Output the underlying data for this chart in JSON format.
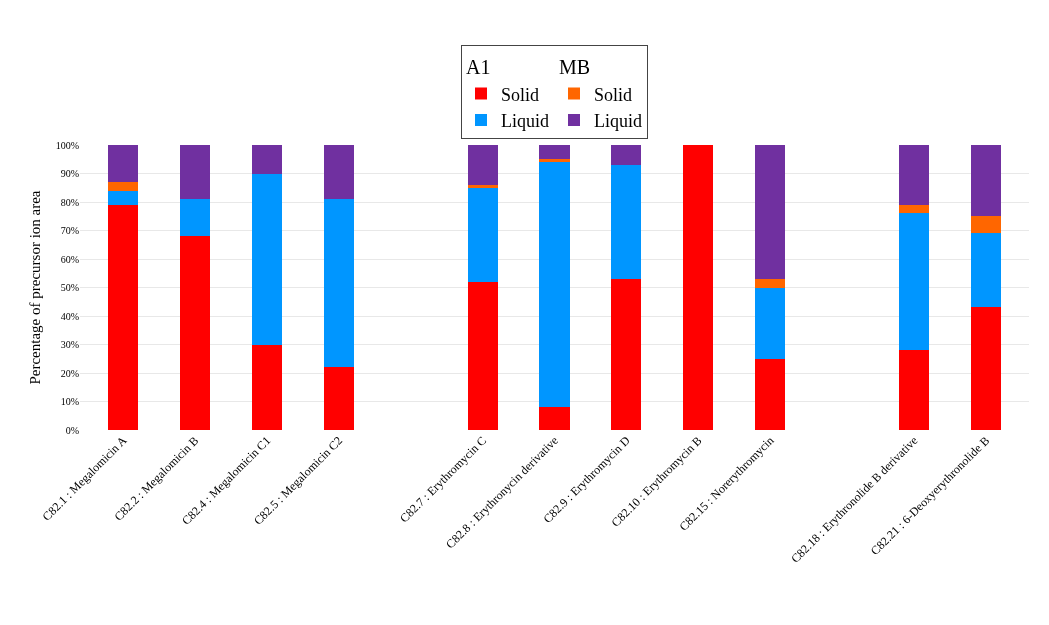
{
  "chart_data": {
    "type": "bar",
    "stacked": true,
    "ylabel": "Percentage of precursor ion area",
    "categories": [
      "C82.1 : Megalomicin A",
      "C82.2 : Megalomicin B",
      "C82.4 : Megalomicin C1",
      "C82.5 : Megalomicin C2",
      null,
      "C82.7 : Erythromycin C",
      "C82.8 : Erythronycin derivative",
      "C82.9 : Erythromycin D",
      "C82.10 : Erythromycin B",
      "C82.15 : Norerythromycin",
      null,
      "C82.18 : Erythronolide B derivative",
      "C82.21 : 6-Deoxyerythronolide B"
    ],
    "series": [
      {
        "name": "Solid",
        "color": "#ff0000",
        "values": [
          79,
          68,
          30,
          22,
          null,
          52,
          8,
          53,
          100,
          25,
          null,
          28,
          43
        ]
      },
      {
        "name": "Liquid",
        "color": "#0096ff",
        "values": [
          5,
          13,
          60,
          59,
          null,
          33,
          86,
          40,
          0,
          25,
          null,
          48,
          26
        ]
      },
      {
        "name": "Solid",
        "color": "#ff6600",
        "values": [
          3,
          0,
          0,
          0,
          null,
          1,
          1,
          0,
          0,
          3,
          null,
          3,
          6
        ]
      },
      {
        "name": "Liquid",
        "color": "#7030a0",
        "values": [
          13,
          19,
          10,
          19,
          null,
          14,
          5,
          7,
          0,
          47,
          null,
          21,
          25
        ]
      }
    ],
    "annotations": [
      "A1",
      "MB"
    ],
    "ylim": [
      0,
      100
    ],
    "yticks": [
      {
        "value": 0,
        "label": "0%"
      },
      {
        "value": 10,
        "label": "10%"
      },
      {
        "value": 20,
        "label": "20%"
      },
      {
        "value": 30,
        "label": "30%"
      },
      {
        "value": 40,
        "label": "40%"
      },
      {
        "value": 50,
        "label": "50%"
      },
      {
        "value": 60,
        "label": "60%"
      },
      {
        "value": 70,
        "label": "70%"
      },
      {
        "value": 80,
        "label": "80%"
      },
      {
        "value": 90,
        "label": "90%"
      },
      {
        "value": 100,
        "label": "100%"
      }
    ],
    "grid": "y",
    "legend": "top"
  }
}
